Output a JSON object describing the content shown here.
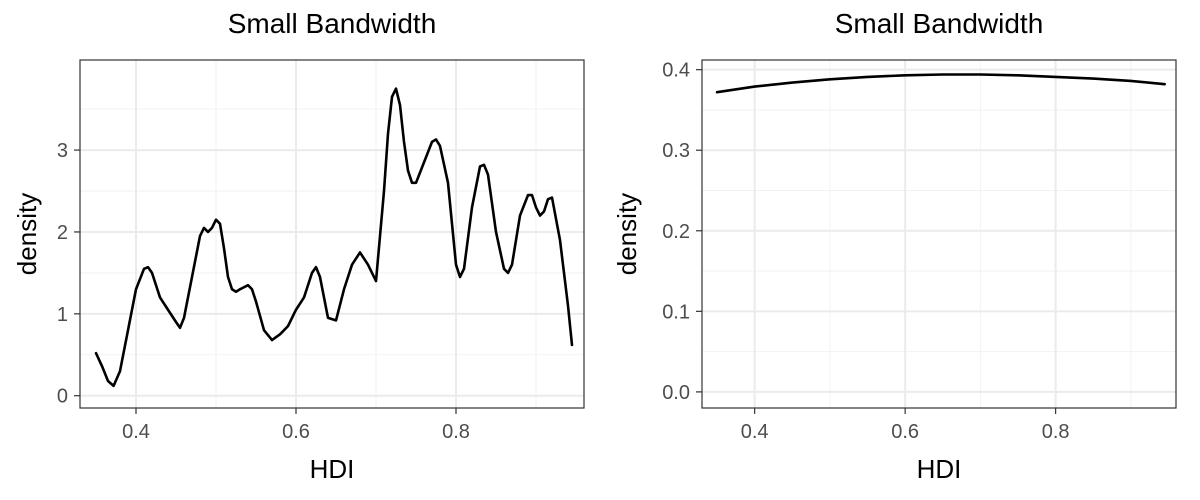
{
  "chart_data": [
    {
      "type": "line",
      "title": "Small Bandwidth",
      "xlabel": "HDI",
      "ylabel": "density",
      "xlim": [
        0.33,
        0.96
      ],
      "ylim": [
        -0.15,
        4.1
      ],
      "x_ticks": [
        0.4,
        0.6,
        0.8
      ],
      "x_tick_labels": [
        "0.4",
        "0.6",
        "0.8"
      ],
      "y_ticks": [
        0,
        1,
        2,
        3
      ],
      "y_tick_labels": [
        "0",
        "1",
        "2",
        "3"
      ],
      "grid": true,
      "series": [
        {
          "x": [
            0.35,
            0.358,
            0.365,
            0.372,
            0.38,
            0.39,
            0.4,
            0.41,
            0.415,
            0.42,
            0.43,
            0.44,
            0.45,
            0.455,
            0.46,
            0.47,
            0.48,
            0.485,
            0.49,
            0.495,
            0.5,
            0.505,
            0.51,
            0.515,
            0.52,
            0.525,
            0.53,
            0.54,
            0.545,
            0.55,
            0.56,
            0.57,
            0.58,
            0.59,
            0.6,
            0.61,
            0.62,
            0.625,
            0.63,
            0.635,
            0.64,
            0.65,
            0.66,
            0.67,
            0.68,
            0.69,
            0.7,
            0.71,
            0.715,
            0.72,
            0.725,
            0.73,
            0.735,
            0.74,
            0.745,
            0.75,
            0.76,
            0.77,
            0.775,
            0.78,
            0.79,
            0.8,
            0.805,
            0.81,
            0.82,
            0.83,
            0.835,
            0.84,
            0.85,
            0.86,
            0.865,
            0.87,
            0.88,
            0.89,
            0.895,
            0.9,
            0.905,
            0.91,
            0.915,
            0.92,
            0.93,
            0.94,
            0.945
          ],
          "y": [
            0.52,
            0.35,
            0.18,
            0.12,
            0.3,
            0.8,
            1.3,
            1.55,
            1.57,
            1.5,
            1.2,
            1.05,
            0.9,
            0.83,
            0.95,
            1.45,
            1.95,
            2.05,
            2.0,
            2.05,
            2.15,
            2.1,
            1.8,
            1.45,
            1.3,
            1.27,
            1.3,
            1.35,
            1.3,
            1.15,
            0.8,
            0.68,
            0.75,
            0.85,
            1.05,
            1.2,
            1.5,
            1.57,
            1.45,
            1.2,
            0.95,
            0.92,
            1.3,
            1.6,
            1.75,
            1.6,
            1.4,
            2.5,
            3.2,
            3.65,
            3.75,
            3.55,
            3.1,
            2.75,
            2.6,
            2.6,
            2.85,
            3.1,
            3.13,
            3.05,
            2.6,
            1.6,
            1.45,
            1.55,
            2.3,
            2.8,
            2.82,
            2.7,
            2.0,
            1.55,
            1.5,
            1.6,
            2.2,
            2.45,
            2.45,
            2.3,
            2.2,
            2.25,
            2.4,
            2.42,
            1.9,
            1.1,
            0.62
          ]
        }
      ]
    },
    {
      "type": "line",
      "title": "Small Bandwidth",
      "xlabel": "HDI",
      "ylabel": "density",
      "xlim": [
        0.33,
        0.96
      ],
      "ylim": [
        -0.02,
        0.412
      ],
      "x_ticks": [
        0.4,
        0.6,
        0.8
      ],
      "x_tick_labels": [
        "0.4",
        "0.6",
        "0.8"
      ],
      "y_ticks": [
        0.0,
        0.1,
        0.2,
        0.3,
        0.4
      ],
      "y_tick_labels": [
        "0.0",
        "0.1",
        "0.2",
        "0.3",
        "0.4"
      ],
      "grid": true,
      "series": [
        {
          "x": [
            0.35,
            0.4,
            0.45,
            0.5,
            0.55,
            0.6,
            0.65,
            0.7,
            0.75,
            0.8,
            0.85,
            0.9,
            0.945
          ],
          "y": [
            0.372,
            0.379,
            0.384,
            0.388,
            0.391,
            0.393,
            0.394,
            0.394,
            0.393,
            0.391,
            0.389,
            0.386,
            0.382
          ]
        }
      ]
    }
  ]
}
